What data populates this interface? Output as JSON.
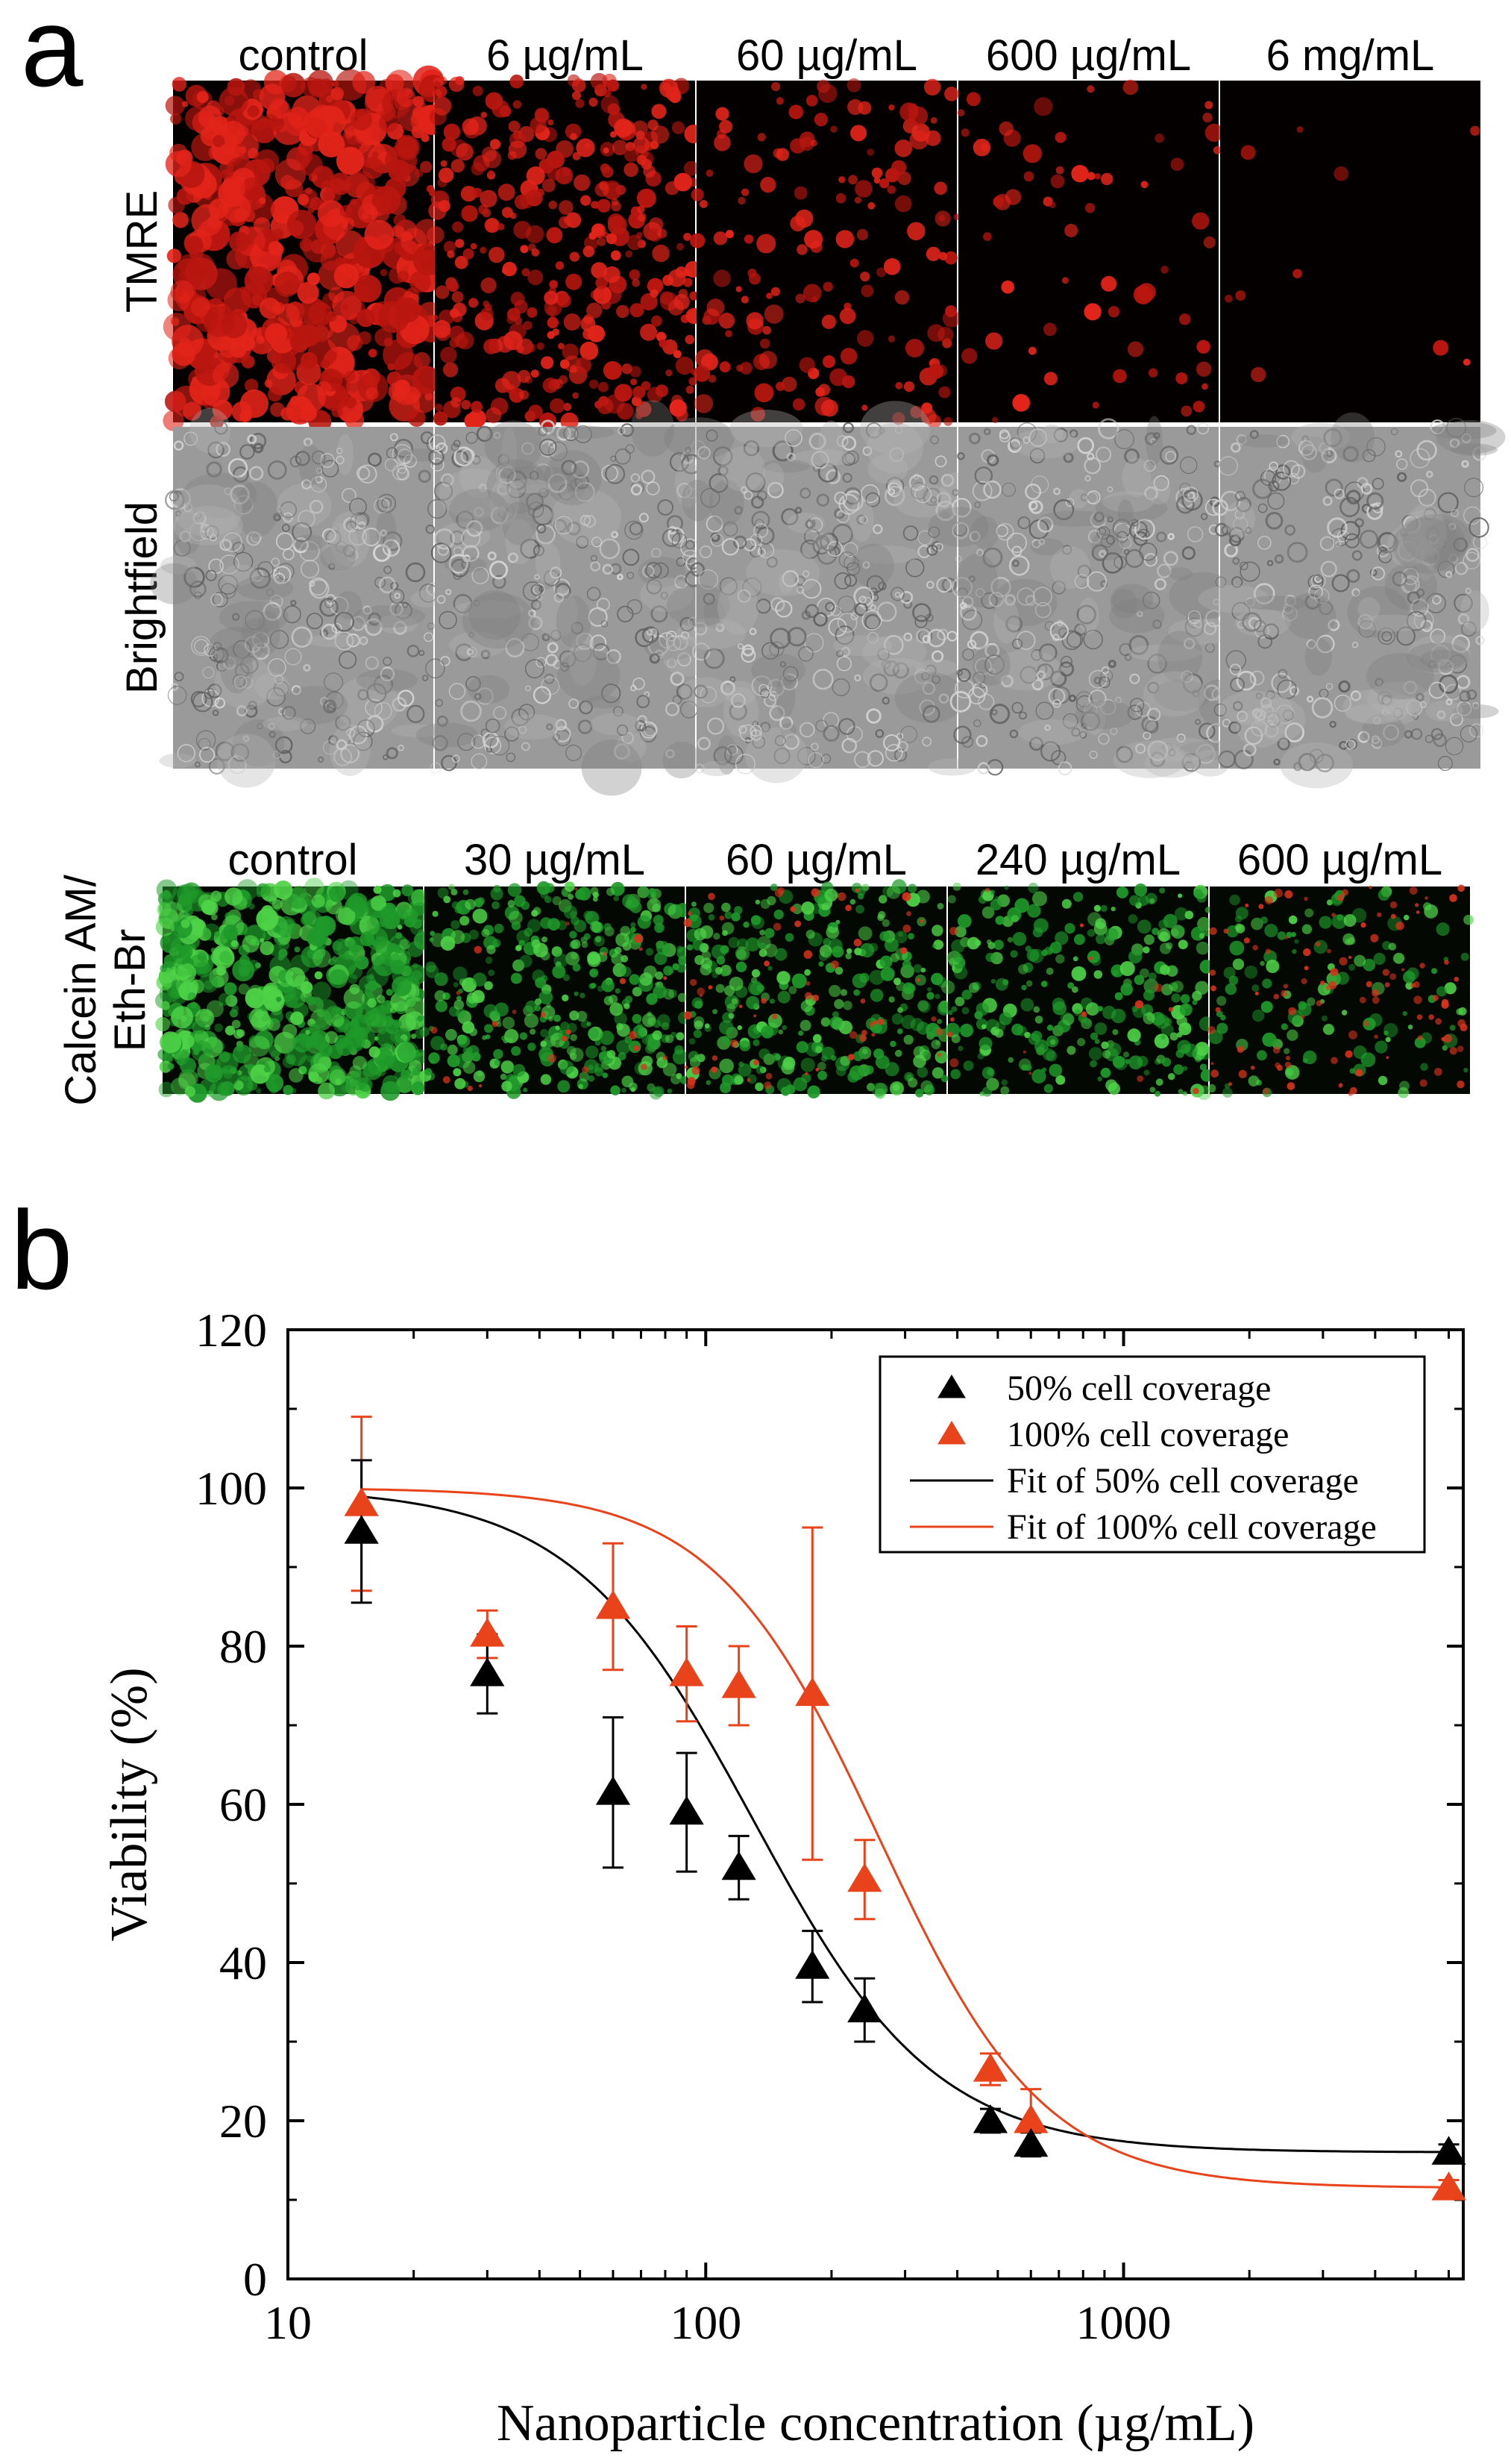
{
  "panel_a": {
    "letter": "a",
    "top_block": {
      "columns": [
        "control",
        "6 µg/mL",
        "60 µg/mL",
        "600 µg/mL",
        "6 mg/mL"
      ],
      "rows": [
        {
          "label": "TMRE",
          "type": "fluor-red",
          "levels": [
            1.0,
            0.7,
            0.3,
            0.12,
            0.02
          ]
        },
        {
          "label": "Brightfield",
          "type": "brightfield",
          "levels": [
            0.6,
            0.6,
            0.55,
            0.45,
            0.5
          ]
        }
      ]
    },
    "bottom_block": {
      "columns": [
        "control",
        "30 µg/mL",
        "60 µg/mL",
        "240 µg/mL",
        "600 µg/mL"
      ],
      "row_label_lines": [
        "Calcein AM/",
        "Eth-Br"
      ],
      "green_levels": [
        0.95,
        0.6,
        0.5,
        0.45,
        0.2
      ],
      "red_levels": [
        0.0,
        0.08,
        0.2,
        0.05,
        0.35
      ]
    }
  },
  "panel_b": {
    "letter": "b"
  },
  "chart_data": {
    "type": "scatter",
    "xlabel": "Nanoparticle concentration (µg/mL)",
    "ylabel": "Viability (%)",
    "xscale": "log",
    "xlim": [
      10,
      6500
    ],
    "ylim": [
      0,
      120
    ],
    "xticks": [
      10,
      100,
      1000
    ],
    "xtick_labels": [
      "10",
      "100",
      "1000"
    ],
    "yticks": [
      0,
      20,
      40,
      60,
      80,
      100,
      120
    ],
    "ytick_labels": [
      "0",
      "20",
      "40",
      "60",
      "80",
      "100",
      "120"
    ],
    "legend_position": "top-right",
    "series": [
      {
        "name": "50% cell coverage",
        "color": "#000000",
        "marker": "triangle",
        "x": [
          15,
          30,
          60,
          90,
          120,
          180,
          240,
          480,
          600,
          6000
        ],
        "y": [
          94.5,
          76.5,
          61.5,
          59,
          52,
          39.5,
          34,
          20,
          17,
          16
        ],
        "err": [
          9,
          5,
          9.5,
          7.5,
          4,
          4.5,
          4,
          1.5,
          1.5,
          1
        ]
      },
      {
        "name": "100% cell coverage",
        "color": "#e8431a",
        "marker": "triangle",
        "x": [
          15,
          30,
          60,
          90,
          120,
          180,
          240,
          480,
          600,
          6000
        ],
        "y": [
          98,
          81.5,
          85,
          76.5,
          75,
          74,
          50.5,
          26.5,
          20,
          11.5
        ],
        "err": [
          11,
          3,
          8,
          6,
          5,
          21,
          5,
          2,
          4,
          1
        ]
      }
    ],
    "fits": [
      {
        "name": "Fit of 50% cell coverage",
        "color": "#000000",
        "top": 100,
        "bottom": 16,
        "ec50": 130,
        "hill": 2.0
      },
      {
        "name": "Fit of 100% cell coverage",
        "color": "#e8431a",
        "top": 100,
        "bottom": 11.5,
        "ec50": 260,
        "hill": 2.2
      }
    ]
  }
}
